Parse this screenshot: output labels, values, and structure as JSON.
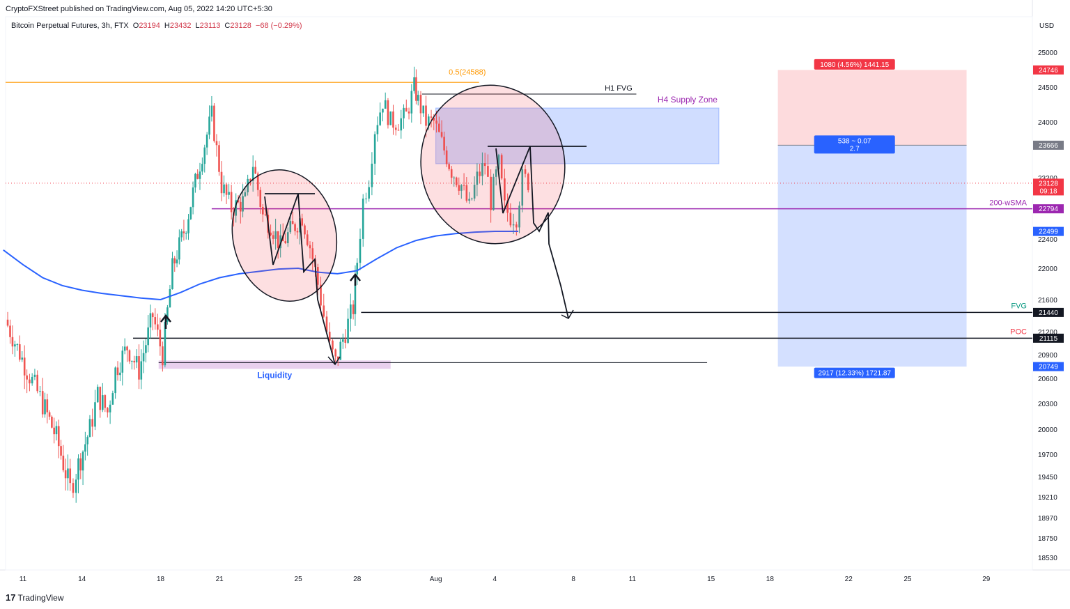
{
  "header": {
    "published": "CryptoFXStreet published on TradingView.com, Aug 05, 2022 14:20 UTC+5:30",
    "symbol": "Bitcoin Perpetual Futures, 3h, FTX",
    "o_label": "O",
    "o_value": "23194",
    "h_label": "H",
    "h_value": "23432",
    "l_label": "L",
    "l_value": "23113",
    "c_label": "C",
    "c_value": "23128",
    "change": "−68 (−0.29%)"
  },
  "footer": {
    "logo": "17",
    "brand": "TradingView"
  },
  "chart_data": {
    "type": "candlestick",
    "currency": "USD",
    "colors": {
      "up": "#26a69a",
      "down": "#ef5350",
      "sma": "#2962ff",
      "wsma": "#9c27b0",
      "fib": "#ff9800"
    },
    "y_ticks": [
      25000,
      24500,
      24000,
      23200,
      22400,
      22000,
      21600,
      21200,
      20900,
      20600,
      20300,
      20000,
      19700,
      19450,
      19210,
      18970,
      18750,
      18530
    ],
    "y_tick_labels": [
      "25000",
      "24500",
      "24000",
      "23200",
      "22400",
      "22000",
      "21600",
      "21200",
      "20900",
      "20600",
      "20300",
      "20000",
      "19700",
      "19450",
      "19210",
      "18970",
      "18750",
      "18530"
    ],
    "x_ticks": [
      {
        "label": "11",
        "day": 11
      },
      {
        "label": "14",
        "day": 14
      },
      {
        "label": "18",
        "day": 18
      },
      {
        "label": "21",
        "day": 21
      },
      {
        "label": "25",
        "day": 25
      },
      {
        "label": "28",
        "day": 28
      },
      {
        "label": "Aug",
        "day": 32
      },
      {
        "label": "4",
        "day": 35
      },
      {
        "label": "8",
        "day": 39
      },
      {
        "label": "11",
        "day": 42
      },
      {
        "label": "15",
        "day": 46
      },
      {
        "label": "18",
        "day": 49
      },
      {
        "label": "22",
        "day": 53
      },
      {
        "label": "25",
        "day": 56
      },
      {
        "label": "29",
        "day": 60
      }
    ],
    "price_path": [
      [
        10.1,
        21350
      ],
      [
        11.2,
        20700
      ],
      [
        12,
        20300
      ],
      [
        12.7,
        19900
      ],
      [
        13.4,
        19300
      ],
      [
        13.7,
        19500
      ],
      [
        14.4,
        20000
      ],
      [
        14.8,
        20400
      ],
      [
        15.3,
        20200
      ],
      [
        15.7,
        20700
      ],
      [
        16.3,
        21000
      ],
      [
        16.9,
        20700
      ],
      [
        17.6,
        21400
      ],
      [
        18.1,
        20900
      ],
      [
        18.6,
        22000
      ],
      [
        19.3,
        22600
      ],
      [
        20,
        23400
      ],
      [
        20.6,
        24100
      ],
      [
        21.1,
        23100
      ],
      [
        21.6,
        22800
      ],
      [
        22.3,
        22900
      ],
      [
        22.7,
        23400
      ],
      [
        23.2,
        22700
      ],
      [
        23.6,
        22600
      ],
      [
        24.1,
        22300
      ],
      [
        24.6,
        22500
      ],
      [
        25.2,
        22700
      ],
      [
        25.6,
        22300
      ],
      [
        26,
        21800
      ],
      [
        26.3,
        21400
      ],
      [
        26.6,
        21000
      ],
      [
        26.9,
        20800
      ],
      [
        27.4,
        21200
      ],
      [
        27.8,
        21500
      ],
      [
        28,
        22100
      ],
      [
        28.3,
        22900
      ],
      [
        28.6,
        23200
      ],
      [
        28.9,
        23900
      ],
      [
        29.3,
        24300
      ],
      [
        29.7,
        24000
      ],
      [
        30.1,
        24000
      ],
      [
        30.5,
        24100
      ],
      [
        30.9,
        24500
      ],
      [
        31.1,
        24300
      ],
      [
        31.5,
        24000
      ],
      [
        31.9,
        24000
      ],
      [
        32.3,
        23700
      ],
      [
        32.8,
        23300
      ],
      [
        33.3,
        23100
      ],
      [
        33.7,
        22800
      ],
      [
        34.1,
        23200
      ],
      [
        34.5,
        23400
      ],
      [
        34.8,
        22900
      ],
      [
        35.2,
        23400
      ],
      [
        35.5,
        22800
      ],
      [
        35.8,
        22700
      ],
      [
        36.1,
        22700
      ],
      [
        36.4,
        23200
      ],
      [
        36.7,
        23150
      ]
    ],
    "sma_200": [
      [
        10,
        22250
      ],
      [
        11,
        22050
      ],
      [
        12,
        21880
      ],
      [
        13,
        21780
      ],
      [
        14,
        21720
      ],
      [
        15,
        21680
      ],
      [
        16,
        21650
      ],
      [
        17,
        21620
      ],
      [
        18,
        21600
      ],
      [
        19,
        21690
      ],
      [
        20,
        21800
      ],
      [
        21,
        21880
      ],
      [
        22,
        21930
      ],
      [
        23,
        21960
      ],
      [
        24,
        21990
      ],
      [
        25,
        22000
      ],
      [
        26,
        21950
      ],
      [
        27,
        21930
      ],
      [
        28,
        21970
      ],
      [
        29,
        22130
      ],
      [
        30,
        22280
      ],
      [
        31,
        22380
      ],
      [
        32,
        22440
      ],
      [
        33,
        22470
      ],
      [
        34,
        22490
      ],
      [
        35,
        22500
      ],
      [
        36.2,
        22500
      ]
    ],
    "lines": {
      "fib": {
        "label": "0.5(24588)",
        "price": 24588
      },
      "h1_fvg": {
        "label": "H1 FVG",
        "price": 24400
      },
      "h4_supply": {
        "label": "H4 Supply Zone",
        "top": 24200,
        "bottom": 23400
      },
      "wsma_200": {
        "label": "200-wSMA",
        "price": 22794
      },
      "fvg": {
        "label": "FVG",
        "price": 21440
      },
      "poc": {
        "label": "POC",
        "price": 21115
      },
      "liquidity": {
        "label": "Liquidity",
        "price": 20800
      },
      "current": {
        "price": 23128
      }
    },
    "position": {
      "entry": 23666,
      "stop": 24746,
      "target": 20749,
      "stop_label": "1080 (4.56%) 1441.15",
      "ratio_label_1": "538 ~ 0.07",
      "ratio_label_2": "2.7",
      "target_label": "2917 (12.33%) 1721.87"
    },
    "axis_badges": [
      {
        "text": "24746",
        "price": 24746,
        "bg": "#f23645",
        "fg": "#ffffff"
      },
      {
        "text": "23666",
        "price": 23666,
        "bg": "#787b86",
        "fg": "#ffffff"
      },
      {
        "text": "23128",
        "sub": "09:18",
        "price": 23128,
        "bg": "#f23645",
        "fg": "#ffffff"
      },
      {
        "text": "22794",
        "price": 22794,
        "bg": "#9c27b0",
        "fg": "#ffffff"
      },
      {
        "text": "22499",
        "price": 22499,
        "bg": "#2962ff",
        "fg": "#ffffff"
      },
      {
        "text": "21440",
        "price": 21440,
        "bg": "#131722",
        "fg": "#ffffff"
      },
      {
        "text": "21115",
        "price": 21115,
        "bg": "#131722",
        "fg": "#ffffff"
      },
      {
        "text": "20749",
        "price": 20749,
        "bg": "#2962ff",
        "fg": "#ffffff"
      }
    ]
  }
}
